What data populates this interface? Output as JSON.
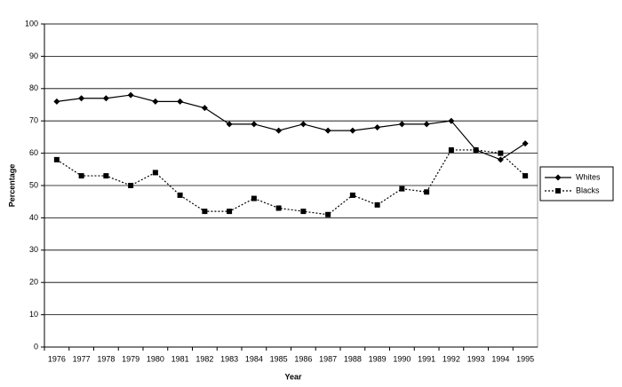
{
  "chart_data": {
    "type": "line",
    "categories": [
      "1976",
      "1977",
      "1978",
      "1979",
      "1980",
      "1981",
      "1982",
      "1983",
      "1984",
      "1985",
      "1986",
      "1987",
      "1988",
      "1989",
      "1990",
      "1991",
      "1992",
      "1993",
      "1994",
      "1995"
    ],
    "series": [
      {
        "name": "Whites",
        "color": "#000000",
        "values": [
          76,
          77,
          77,
          78,
          76,
          76,
          74,
          69,
          69,
          67,
          69,
          67,
          67,
          68,
          69,
          69,
          70,
          61,
          58,
          63
        ]
      },
      {
        "name": "Blacks",
        "color": "#000000",
        "values": [
          58,
          53,
          53,
          50,
          54,
          47,
          42,
          42,
          46,
          43,
          42,
          41,
          47,
          44,
          49,
          48,
          61,
          61,
          60,
          53
        ]
      }
    ],
    "x_label": "Year",
    "y_label": "Percentage",
    "ylim": [
      0,
      100
    ],
    "yticks": [
      0,
      10,
      20,
      30,
      40,
      50,
      60,
      70,
      80,
      90,
      100
    ],
    "grid": true,
    "legend": "right"
  }
}
